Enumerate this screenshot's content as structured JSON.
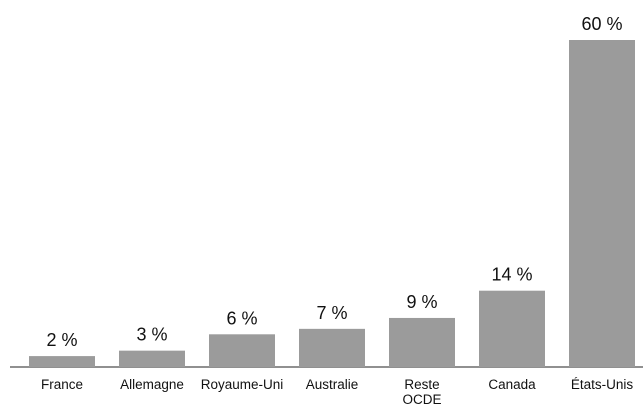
{
  "chart_data": {
    "type": "bar",
    "categories": [
      "France",
      "Allemagne",
      "Royaume-Uni",
      "Australie",
      "Reste OCDE",
      "Canada",
      "États-Unis"
    ],
    "values": [
      2,
      3,
      6,
      7,
      9,
      14,
      60
    ],
    "value_labels": [
      "2 %",
      "3 %",
      "6 %",
      "7 %",
      "9 %",
      "14 %",
      "60 %"
    ],
    "color": "#9b9b9b"
  }
}
